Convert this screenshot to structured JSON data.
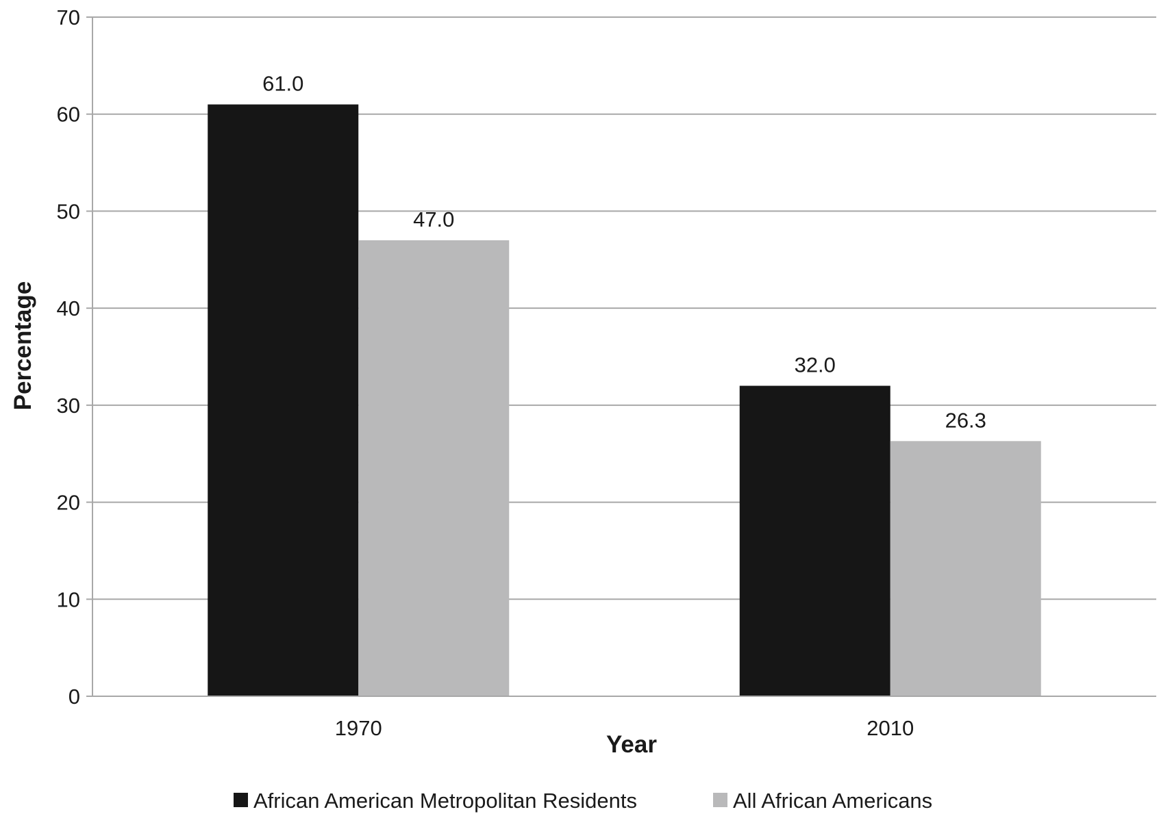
{
  "chart_data": {
    "type": "bar",
    "title": "",
    "xlabel": "Year",
    "ylabel": "Percentage",
    "categories": [
      "1970",
      "2010"
    ],
    "ylim": [
      0,
      70
    ],
    "yticks": [
      0,
      10,
      20,
      30,
      40,
      50,
      60,
      70
    ],
    "grid": true,
    "legend_position": "bottom",
    "series": [
      {
        "name": "African American Metropolitan Residents",
        "values": [
          61.0,
          32.0
        ],
        "labels": [
          "61.0",
          "32.0"
        ],
        "color": "#161616"
      },
      {
        "name": "All African Americans",
        "values": [
          47.0,
          26.3
        ],
        "labels": [
          "47.0",
          "26.3"
        ],
        "color": "#b9b9ba"
      }
    ]
  }
}
